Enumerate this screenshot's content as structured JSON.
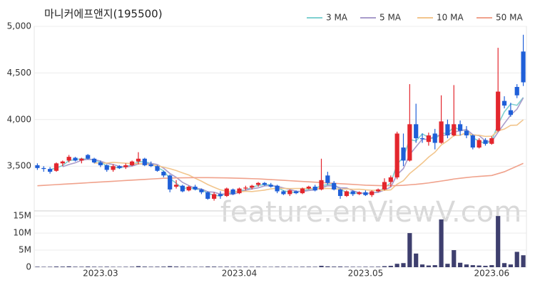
{
  "chart_data": {
    "type": "candlestick",
    "title": "마니커에프앤지(195500)",
    "watermark": "feature.enViewV.com",
    "categories": [
      null,
      null,
      null,
      null,
      null,
      null,
      null,
      null,
      null,
      null,
      "2023.03",
      null,
      null,
      null,
      null,
      null,
      null,
      null,
      null,
      null,
      null,
      null,
      null,
      null,
      null,
      null,
      null,
      null,
      null,
      null,
      null,
      null,
      "2023.04",
      null,
      null,
      null,
      null,
      null,
      null,
      null,
      null,
      null,
      null,
      null,
      null,
      null,
      null,
      null,
      null,
      null,
      null,
      null,
      "2023.05",
      null,
      null,
      null,
      null,
      null,
      null,
      null,
      null,
      null,
      null,
      null,
      null,
      null,
      null,
      null,
      null,
      null,
      null,
      null,
      "2023.06",
      null,
      null,
      null,
      null,
      null
    ],
    "ohlc": [
      [
        3510,
        3530,
        3460,
        3480
      ],
      [
        3480,
        3500,
        3440,
        3470
      ],
      [
        3470,
        3490,
        3420,
        3440
      ],
      [
        3450,
        3540,
        3440,
        3530
      ],
      [
        3530,
        3560,
        3500,
        3550
      ],
      [
        3560,
        3620,
        3540,
        3600
      ],
      [
        3590,
        3600,
        3550,
        3560
      ],
      [
        3560,
        3590,
        3530,
        3580
      ],
      [
        3620,
        3630,
        3570,
        3580
      ],
      [
        3580,
        3590,
        3530,
        3540
      ],
      [
        3540,
        3560,
        3490,
        3510
      ],
      [
        3510,
        3520,
        3440,
        3460
      ],
      [
        3460,
        3520,
        3440,
        3500
      ],
      [
        3500,
        3510,
        3470,
        3480
      ],
      [
        3490,
        3530,
        3470,
        3510
      ],
      [
        3510,
        3560,
        3500,
        3550
      ],
      [
        3550,
        3650,
        3520,
        3580
      ],
      [
        3580,
        3590,
        3500,
        3510
      ],
      [
        3520,
        3550,
        3490,
        3500
      ],
      [
        3500,
        3510,
        3440,
        3450
      ],
      [
        3440,
        3450,
        3380,
        3400
      ],
      [
        3400,
        3410,
        3220,
        3250
      ],
      [
        3280,
        3350,
        3260,
        3300
      ],
      [
        3290,
        3300,
        3220,
        3230
      ],
      [
        3240,
        3290,
        3230,
        3280
      ],
      [
        3280,
        3300,
        3240,
        3250
      ],
      [
        3250,
        3260,
        3200,
        3220
      ],
      [
        3220,
        3230,
        3140,
        3150
      ],
      [
        3150,
        3220,
        3130,
        3200
      ],
      [
        3200,
        3230,
        3150,
        3180
      ],
      [
        3180,
        3270,
        3170,
        3260
      ],
      [
        3250,
        3260,
        3190,
        3200
      ],
      [
        3210,
        3270,
        3200,
        3260
      ],
      [
        3260,
        3290,
        3240,
        3270
      ],
      [
        3270,
        3300,
        3250,
        3290
      ],
      [
        3300,
        3330,
        3280,
        3320
      ],
      [
        3320,
        3330,
        3290,
        3300
      ],
      [
        3300,
        3320,
        3270,
        3280
      ],
      [
        3290,
        3300,
        3210,
        3230
      ],
      [
        3230,
        3240,
        3190,
        3200
      ],
      [
        3200,
        3250,
        3180,
        3240
      ],
      [
        3230,
        3240,
        3200,
        3210
      ],
      [
        3210,
        3270,
        3200,
        3260
      ],
      [
        3260,
        3290,
        3250,
        3280
      ],
      [
        3280,
        3300,
        3230,
        3240
      ],
      [
        3250,
        3580,
        3240,
        3350
      ],
      [
        3400,
        3440,
        3300,
        3320
      ],
      [
        3320,
        3340,
        3240,
        3250
      ],
      [
        3250,
        3260,
        3150,
        3180
      ],
      [
        3180,
        3240,
        3170,
        3230
      ],
      [
        3230,
        3240,
        3180,
        3200
      ],
      [
        3200,
        3230,
        3190,
        3220
      ],
      [
        3220,
        3240,
        3180,
        3190
      ],
      [
        3190,
        3240,
        3170,
        3230
      ],
      [
        3230,
        3260,
        3220,
        3250
      ],
      [
        3250,
        3370,
        3240,
        3330
      ],
      [
        3330,
        3400,
        3280,
        3380
      ],
      [
        3380,
        3870,
        3360,
        3850
      ],
      [
        3700,
        3850,
        3500,
        3560
      ],
      [
        3560,
        4380,
        3550,
        3950
      ],
      [
        3950,
        4170,
        3750,
        3800
      ],
      [
        3800,
        3850,
        3750,
        3790
      ],
      [
        3760,
        3860,
        3720,
        3830
      ],
      [
        3850,
        3900,
        3680,
        3750
      ],
      [
        3750,
        4260,
        3740,
        3980
      ],
      [
        3950,
        4000,
        3800,
        3830
      ],
      [
        3830,
        4370,
        3820,
        3950
      ],
      [
        3950,
        3990,
        3830,
        3880
      ],
      [
        3880,
        3930,
        3800,
        3830
      ],
      [
        3830,
        3840,
        3680,
        3700
      ],
      [
        3700,
        3800,
        3690,
        3780
      ],
      [
        3780,
        3800,
        3720,
        3740
      ],
      [
        3740,
        3820,
        3730,
        3800
      ],
      [
        3880,
        4770,
        3870,
        4300
      ],
      [
        4200,
        4250,
        4120,
        4150
      ],
      [
        4100,
        4180,
        4030,
        4050
      ],
      [
        4350,
        4380,
        4230,
        4260
      ],
      [
        4730,
        4910,
        4360,
        4400
      ]
    ],
    "up_color": "#e3262d",
    "down_color": "#1f5fd8",
    "ylim": [
      3020,
      5000
    ],
    "yticks": [
      {
        "value": 3500,
        "label": "3,500"
      },
      {
        "value": 4000,
        "label": "4,000"
      },
      {
        "value": 4500,
        "label": "4,500"
      },
      {
        "value": 5000,
        "label": "5,000"
      }
    ],
    "grid": true,
    "series": [
      {
        "name": "3 MA",
        "color": "#7fd0d0",
        "values": [
          null,
          null,
          3463,
          3480,
          3507,
          3560,
          3570,
          3580,
          3573,
          3567,
          3543,
          3503,
          3490,
          3480,
          3497,
          3513,
          3547,
          3547,
          3530,
          3487,
          3450,
          3367,
          3317,
          3260,
          3270,
          3253,
          3250,
          3207,
          3190,
          3177,
          3213,
          3213,
          3240,
          3243,
          3273,
          3293,
          3303,
          3300,
          3270,
          3237,
          3223,
          3217,
          3237,
          3250,
          3260,
          3290,
          3303,
          3307,
          3250,
          3220,
          3203,
          3217,
          3203,
          3213,
          3223,
          3270,
          3320,
          3520,
          3597,
          3787,
          3770,
          3847,
          3807,
          3790,
          3853,
          3853,
          3920,
          3887,
          3887,
          3803,
          3770,
          3740,
          3773,
          3947,
          4083,
          4167,
          4153,
          4237
        ]
      },
      {
        "name": "5 MA",
        "color": "#a99ccb",
        "values": [
          null,
          null,
          null,
          null,
          3494,
          3518,
          3536,
          3564,
          3574,
          3572,
          3554,
          3530,
          3518,
          3498,
          3492,
          3500,
          3524,
          3526,
          3530,
          3518,
          3478,
          3422,
          3380,
          3326,
          3292,
          3262,
          3256,
          3226,
          3220,
          3200,
          3202,
          3198,
          3220,
          3242,
          3256,
          3268,
          3288,
          3292,
          3284,
          3266,
          3250,
          3232,
          3228,
          3238,
          3246,
          3268,
          3290,
          3288,
          3268,
          3266,
          3236,
          3216,
          3204,
          3214,
          3218,
          3244,
          3276,
          3408,
          3474,
          3624,
          3708,
          3790,
          3786,
          3824,
          3830,
          3836,
          3868,
          3878,
          3894,
          3838,
          3828,
          3770,
          3764,
          3864,
          3958,
          4048,
          4112,
          4232
        ]
      },
      {
        "name": "10 MA",
        "color": "#f2c58c",
        "values": [
          null,
          null,
          null,
          null,
          null,
          null,
          null,
          null,
          null,
          3533,
          3536,
          3533,
          3541,
          3536,
          3532,
          3527,
          3527,
          3522,
          3514,
          3505,
          3489,
          3473,
          3453,
          3428,
          3405,
          3370,
          3339,
          3303,
          3273,
          3246,
          3232,
          3227,
          3223,
          3231,
          3228,
          3235,
          3243,
          3256,
          3263,
          3261,
          3259,
          3260,
          3260,
          3261,
          3256,
          3259,
          3261,
          3258,
          3253,
          3256,
          3252,
          3253,
          3246,
          3241,
          3242,
          3240,
          3246,
          3306,
          3344,
          3421,
          3476,
          3533,
          3597,
          3649,
          3727,
          3772,
          3829,
          3832,
          3859,
          3834,
          3832,
          3819,
          3821,
          3879,
          3898,
          3938,
          3941,
          3998
        ]
      },
      {
        "name": "50 MA",
        "color": "#f0a28c",
        "values": [
          3290,
          3294,
          3298,
          3302,
          3306,
          3310,
          3314,
          3318,
          3322,
          3326,
          3330,
          3334,
          3338,
          3342,
          3346,
          3350,
          3354,
          3358,
          3362,
          3366,
          3370,
          3372,
          3374,
          3375,
          3376,
          3377,
          3377,
          3377,
          3376,
          3375,
          3374,
          3372,
          3370,
          3368,
          3366,
          3364,
          3360,
          3356,
          3352,
          3348,
          3344,
          3340,
          3336,
          3332,
          3328,
          3324,
          3320,
          3316,
          3312,
          3308,
          3304,
          3300,
          3296,
          3294,
          3292,
          3290,
          3290,
          3292,
          3295,
          3300,
          3305,
          3312,
          3320,
          3330,
          3340,
          3350,
          3362,
          3370,
          3378,
          3385,
          3390,
          3395,
          3400,
          3420,
          3440,
          3470,
          3500,
          3530
        ]
      }
    ],
    "volume": {
      "color": "#3e3f6e",
      "ylim": [
        0,
        16500000
      ],
      "yticks": [
        0,
        {
          "value": 5000000,
          "label": "5M"
        },
        {
          "value": 10000000,
          "label": "10M"
        },
        {
          "value": 15000000,
          "label": "15M"
        }
      ],
      "values": [
        150000,
        120000,
        130000,
        200000,
        180000,
        250000,
        150000,
        140000,
        200000,
        150000,
        130000,
        160000,
        120000,
        110000,
        130000,
        150000,
        300000,
        180000,
        140000,
        160000,
        180000,
        300000,
        200000,
        160000,
        140000,
        130000,
        120000,
        200000,
        180000,
        140000,
        160000,
        130000,
        150000,
        140000,
        130000,
        160000,
        120000,
        110000,
        150000,
        140000,
        130000,
        120000,
        140000,
        150000,
        130000,
        400000,
        250000,
        180000,
        200000,
        150000,
        130000,
        120000,
        140000,
        130000,
        150000,
        300000,
        400000,
        1000000,
        1200000,
        10000000,
        4000000,
        800000,
        500000,
        600000,
        14000000,
        1000000,
        5000000,
        1300000,
        800000,
        600000,
        500000,
        400000,
        600000,
        15000000,
        1200000,
        800000,
        4500000,
        3500000
      ]
    }
  }
}
